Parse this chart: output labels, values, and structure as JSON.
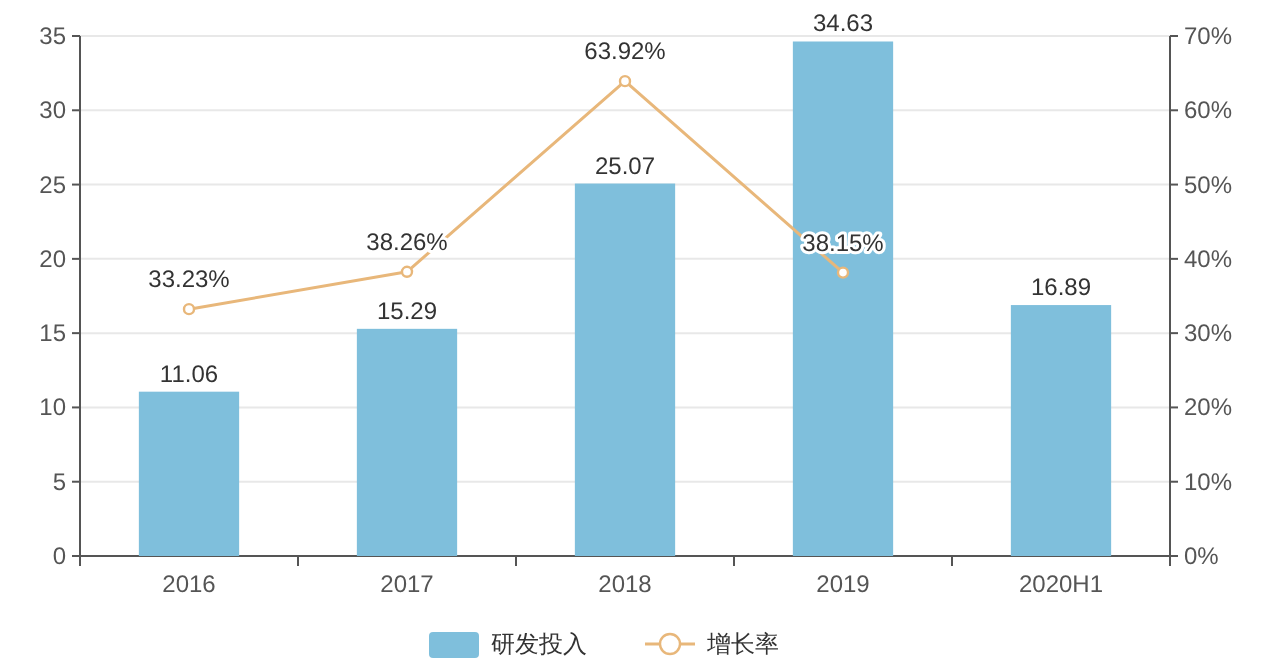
{
  "chart_data": {
    "type": "bar",
    "categories": [
      "2016",
      "2017",
      "2018",
      "2019",
      "2020H1"
    ],
    "series": [
      {
        "name": "研发投入",
        "color": "#7fbfdc",
        "values": [
          11.06,
          15.29,
          25.07,
          34.63,
          16.89
        ],
        "value_labels": [
          "11.06",
          "15.29",
          "25.07",
          "34.63",
          "16.89"
        ]
      },
      {
        "name": "增长率",
        "type": "line",
        "axis": "y2",
        "color": "#e8b77a",
        "marker": "circle",
        "values": [
          33.23,
          38.26,
          63.92,
          38.15,
          null
        ],
        "value_labels": [
          "33.23%",
          "38.26%",
          "63.92%",
          "38.15%",
          null
        ]
      }
    ],
    "ylim": [
      0,
      35
    ],
    "yticks": [
      0,
      5,
      10,
      15,
      20,
      25,
      30,
      35
    ],
    "y2lim": [
      0,
      70
    ],
    "y2ticks": [
      {
        "value": 0,
        "label": "0%"
      },
      {
        "value": 10,
        "label": "10%"
      },
      {
        "value": 20,
        "label": "20%"
      },
      {
        "value": 30,
        "label": "30%"
      },
      {
        "value": 40,
        "label": "40%"
      },
      {
        "value": 50,
        "label": "50%"
      },
      {
        "value": 60,
        "label": "60%"
      },
      {
        "value": 70,
        "label": "70%"
      }
    ],
    "grid": "y",
    "legend": "bottom"
  }
}
